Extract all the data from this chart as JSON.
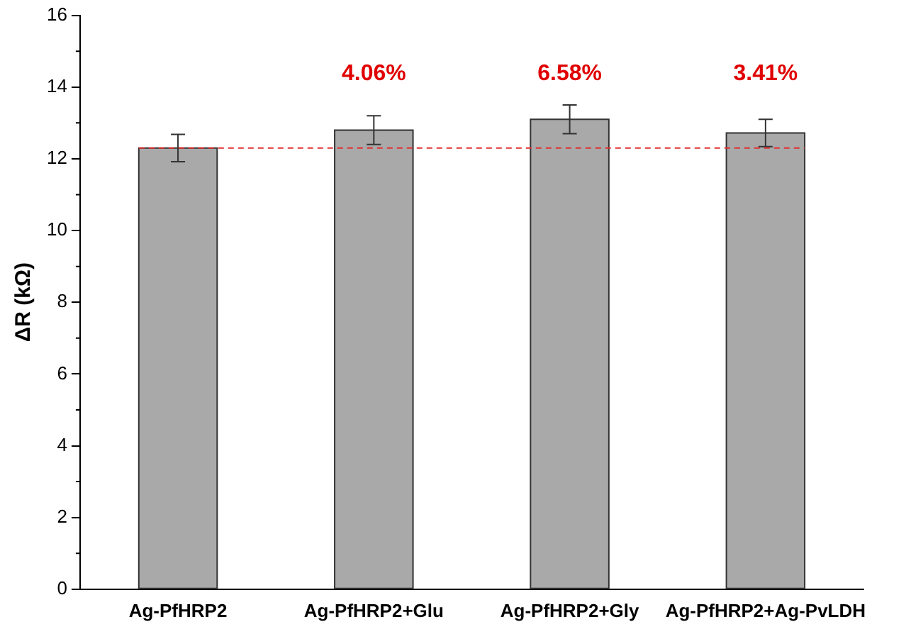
{
  "chart_data": {
    "type": "bar",
    "ylabel": "ΔR (kΩ)",
    "categories": [
      "Ag-PfHRP2",
      "Ag-PfHRP2+Glu",
      "Ag-PfHRP2+Gly",
      "Ag-PfHRP2+Ag-PvLDH"
    ],
    "values": [
      12.3,
      12.8,
      13.1,
      12.72
    ],
    "errors": [
      0.38,
      0.4,
      0.4,
      0.38
    ],
    "color": "#a9a9a9",
    "ylim": [
      0,
      16
    ],
    "yticks": [
      0,
      2,
      4,
      6,
      8,
      10,
      12,
      14,
      16
    ],
    "grid": false,
    "legend": false,
    "ref_lines": [
      {
        "axis": "y",
        "value": 12.3,
        "color": "#e03030",
        "line_style": "dashed"
      }
    ],
    "annotations": [
      "4.06%",
      "6.58%",
      "3.41%"
    ]
  }
}
